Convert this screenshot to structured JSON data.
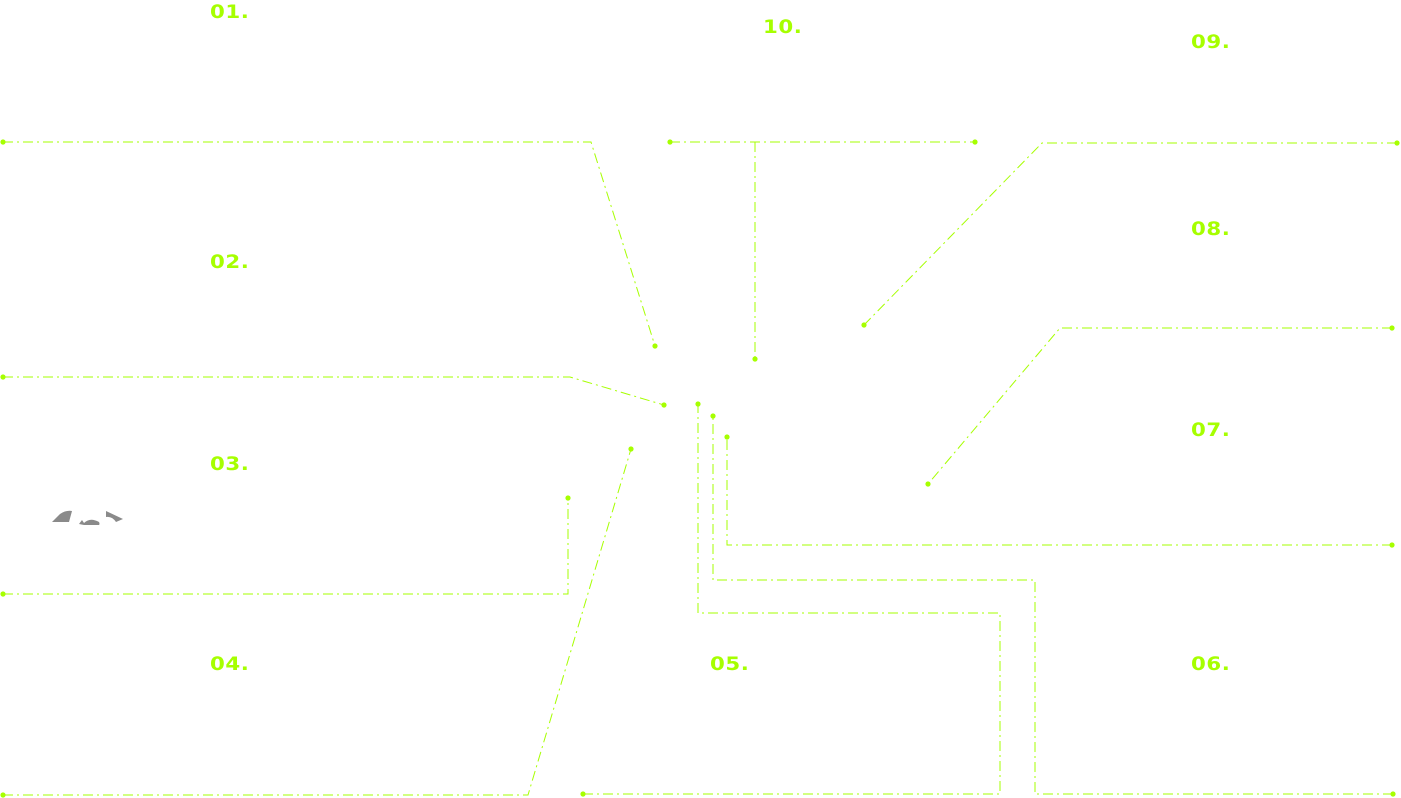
{
  "colors": {
    "accent": "#a6ff00",
    "logo": "#8a8a8a",
    "background": "#ffffff"
  },
  "callouts": [
    {
      "id": "01",
      "label": "01."
    },
    {
      "id": "02",
      "label": "02."
    },
    {
      "id": "03",
      "label": "03."
    },
    {
      "id": "04",
      "label": "04."
    },
    {
      "id": "05",
      "label": "05."
    },
    {
      "id": "06",
      "label": "06."
    },
    {
      "id": "07",
      "label": "07."
    },
    {
      "id": "08",
      "label": "08."
    },
    {
      "id": "09",
      "label": "09."
    },
    {
      "id": "10",
      "label": "10."
    }
  ],
  "logo_icon": "partial-logo-icon"
}
